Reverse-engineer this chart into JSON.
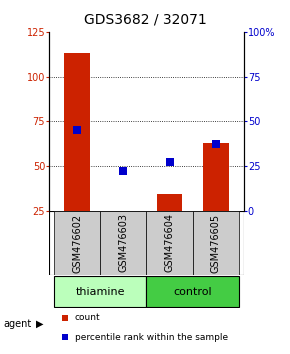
{
  "title": "GDS3682 / 32071",
  "samples": [
    "GSM476602",
    "GSM476603",
    "GSM476604",
    "GSM476605"
  ],
  "counts": [
    113,
    25,
    34,
    63
  ],
  "percentiles": [
    45,
    22,
    27,
    37
  ],
  "ylim_left": [
    25,
    125
  ],
  "ylim_right": [
    0,
    100
  ],
  "yticks_left": [
    25,
    50,
    75,
    100,
    125
  ],
  "yticks_right": [
    0,
    25,
    50,
    75,
    100
  ],
  "yticklabels_right": [
    "0",
    "25",
    "50",
    "75",
    "100%"
  ],
  "bar_color": "#cc2200",
  "dot_color": "#0000cc",
  "groups": [
    {
      "label": "thiamine",
      "samples": [
        0,
        1
      ],
      "color": "#bbffbb"
    },
    {
      "label": "control",
      "samples": [
        2,
        3
      ],
      "color": "#44cc44"
    }
  ],
  "agent_label": "agent",
  "legend_count_label": "count",
  "legend_pct_label": "percentile rank within the sample",
  "bar_width": 0.55,
  "dot_size": 28,
  "title_fontsize": 10,
  "tick_fontsize": 7,
  "label_fontsize": 8,
  "sample_label_fontsize": 7
}
